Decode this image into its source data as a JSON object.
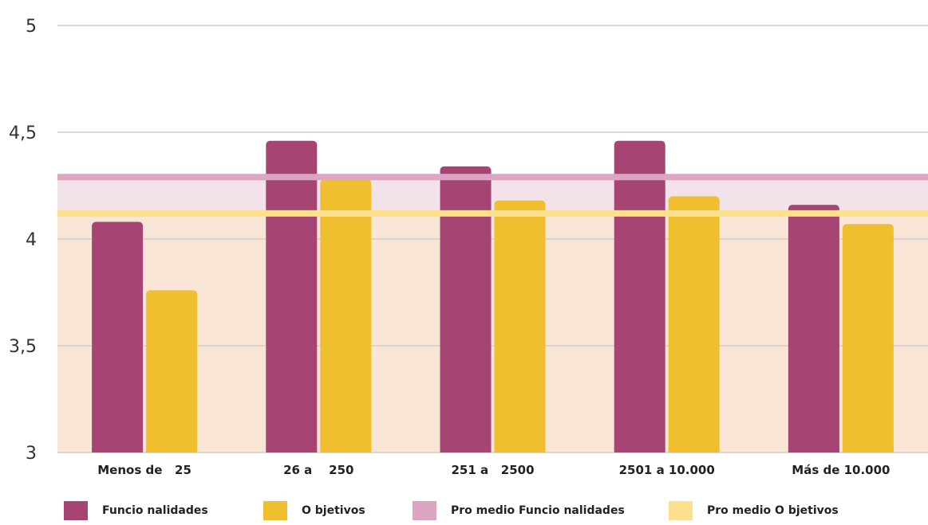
{
  "colors": {
    "funcionalidades": "#a64573",
    "objetivos": "#efbf2f",
    "promedio_funcionalidades": "#dca6c3",
    "promedio_objetivos": "#fde08e",
    "band_top": "#f2e2ea",
    "band_bottom": "#f8e5d6",
    "grid": "#cfcfcf"
  },
  "chart_data": {
    "type": "bar",
    "categories": [
      "Menos de   25",
      "26 a    250",
      "251 a   2500",
      "2501 a 10.000",
      "Más de 10.000"
    ],
    "series": [
      {
        "name": "Funcionalidades",
        "values": [
          4.08,
          4.46,
          4.34,
          4.46,
          4.16
        ]
      },
      {
        "name": "Objetivos",
        "values": [
          3.76,
          4.28,
          4.18,
          4.2,
          4.07
        ]
      }
    ],
    "reference_lines": [
      {
        "name": "Promedio Funcionalidades",
        "value": 4.29
      },
      {
        "name": "Promedio Objetivos",
        "value": 4.12
      }
    ],
    "y_ticks": [
      "3",
      "3,5",
      "4",
      "4,5",
      "5"
    ],
    "y_tick_values": [
      3,
      3.5,
      4,
      4.5,
      5
    ],
    "ylim": [
      3,
      5
    ],
    "grid": true,
    "legend_position": "bottom"
  },
  "legend": {
    "items": [
      {
        "label": "Funcio nalidades",
        "color_key": "funcionalidades"
      },
      {
        "label": "O bjetivos",
        "color_key": "objetivos"
      },
      {
        "label": "Pro medio Funcio nalidades",
        "color_key": "promedio_funcionalidades"
      },
      {
        "label": "Pro medio O bjetivos",
        "color_key": "promedio_objetivos"
      }
    ]
  }
}
